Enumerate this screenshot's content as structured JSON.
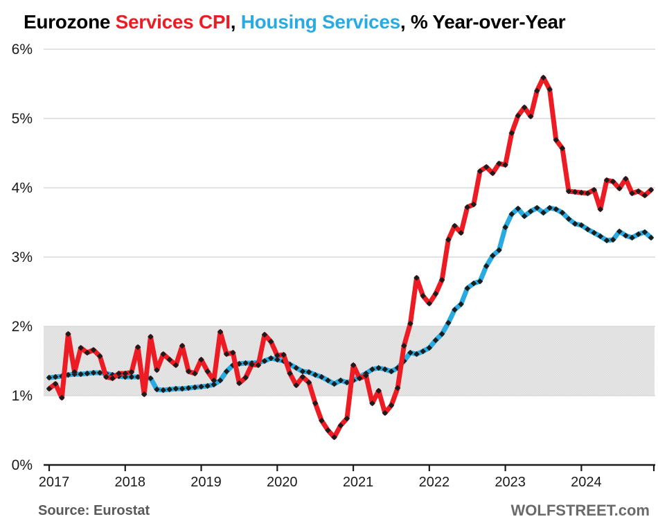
{
  "title": {
    "part1": "Eurozone ",
    "part2": "Services CPI",
    "part3": ", ",
    "part4": "Housing Services",
    "part5": ", % Year-over-Year"
  },
  "footer": {
    "source": "Source: Eurostat",
    "brand": "WOLFSTREET.com"
  },
  "colors": {
    "services_line": "#ed1c24",
    "housing_line": "#29abe2",
    "marker": "#1c1c1c",
    "band_light": "#e7e7e7",
    "band_dark": "#dcdcdc",
    "gridline": "#d9d9d9",
    "axis": "#1a1a1a",
    "title_red": "#ed1c24",
    "title_blue": "#29abe2",
    "source_text": "#595959",
    "brand_text": "#6a6a6a"
  },
  "chart_data": {
    "type": "line",
    "title": "Eurozone Services CPI, Housing Services, % Year-over-Year",
    "xlabel": "",
    "ylabel": "% Year-over-Year",
    "x_unit": "month",
    "x_start": "2017-01",
    "x_end": "2024-12",
    "x_tick_labels": [
      "2017",
      "2018",
      "2019",
      "2020",
      "2021",
      "2022",
      "2023",
      "2024"
    ],
    "y_tick_labels": [
      "0%",
      "1%",
      "2%",
      "3%",
      "4%",
      "5%",
      "6%"
    ],
    "ylim": [
      0,
      6
    ],
    "grid": "horizontal-only",
    "highlight_band": {
      "from": 1,
      "to": 2,
      "note": "shaded gray band between 1% and 2%"
    },
    "legend_position": "in-title",
    "marker_shape": "black-diamond",
    "series": [
      {
        "name": "Services CPI",
        "color": "#ed1c24",
        "values": [
          1.1,
          1.17,
          0.97,
          1.89,
          1.34,
          1.69,
          1.62,
          1.66,
          1.57,
          1.27,
          1.25,
          1.32,
          1.32,
          1.34,
          1.7,
          1.02,
          1.85,
          1.37,
          1.6,
          1.52,
          1.44,
          1.72,
          1.35,
          1.32,
          1.52,
          1.35,
          1.22,
          1.92,
          1.6,
          1.62,
          1.18,
          1.26,
          1.45,
          1.44,
          1.88,
          1.78,
          1.58,
          1.59,
          1.32,
          1.15,
          1.27,
          1.19,
          0.89,
          0.64,
          0.5,
          0.4,
          0.57,
          0.67,
          1.44,
          1.25,
          1.29,
          0.89,
          1.07,
          0.75,
          0.86,
          1.11,
          1.72,
          2.04,
          2.7,
          2.44,
          2.33,
          2.47,
          2.67,
          3.25,
          3.45,
          3.35,
          3.72,
          3.76,
          4.24,
          4.3,
          4.21,
          4.35,
          4.33,
          4.79,
          5.04,
          5.16,
          5.03,
          5.4,
          5.59,
          5.42,
          4.69,
          4.57,
          3.95,
          3.94,
          3.93,
          3.92,
          3.97,
          3.69,
          4.11,
          4.09,
          3.99,
          4.13,
          3.92,
          3.95,
          3.89,
          3.97
        ]
      },
      {
        "name": "Housing Services",
        "color": "#29abe2",
        "values": [
          1.26,
          1.27,
          1.28,
          1.3,
          1.31,
          1.31,
          1.32,
          1.33,
          1.33,
          1.32,
          1.3,
          1.28,
          1.27,
          1.27,
          1.27,
          1.26,
          1.25,
          1.09,
          1.08,
          1.09,
          1.1,
          1.1,
          1.11,
          1.12,
          1.13,
          1.14,
          1.16,
          1.22,
          1.35,
          1.44,
          1.46,
          1.47,
          1.47,
          1.48,
          1.5,
          1.54,
          1.52,
          1.5,
          1.45,
          1.4,
          1.35,
          1.34,
          1.3,
          1.27,
          1.22,
          1.17,
          1.22,
          1.19,
          1.22,
          1.27,
          1.32,
          1.38,
          1.4,
          1.38,
          1.35,
          1.4,
          1.5,
          1.62,
          1.6,
          1.64,
          1.69,
          1.8,
          1.89,
          2.05,
          2.24,
          2.32,
          2.55,
          2.62,
          2.65,
          2.87,
          3.02,
          3.1,
          3.43,
          3.62,
          3.7,
          3.59,
          3.66,
          3.71,
          3.64,
          3.71,
          3.69,
          3.64,
          3.55,
          3.48,
          3.46,
          3.4,
          3.35,
          3.3,
          3.24,
          3.25,
          3.37,
          3.31,
          3.28,
          3.33,
          3.36,
          3.28
        ]
      }
    ]
  }
}
